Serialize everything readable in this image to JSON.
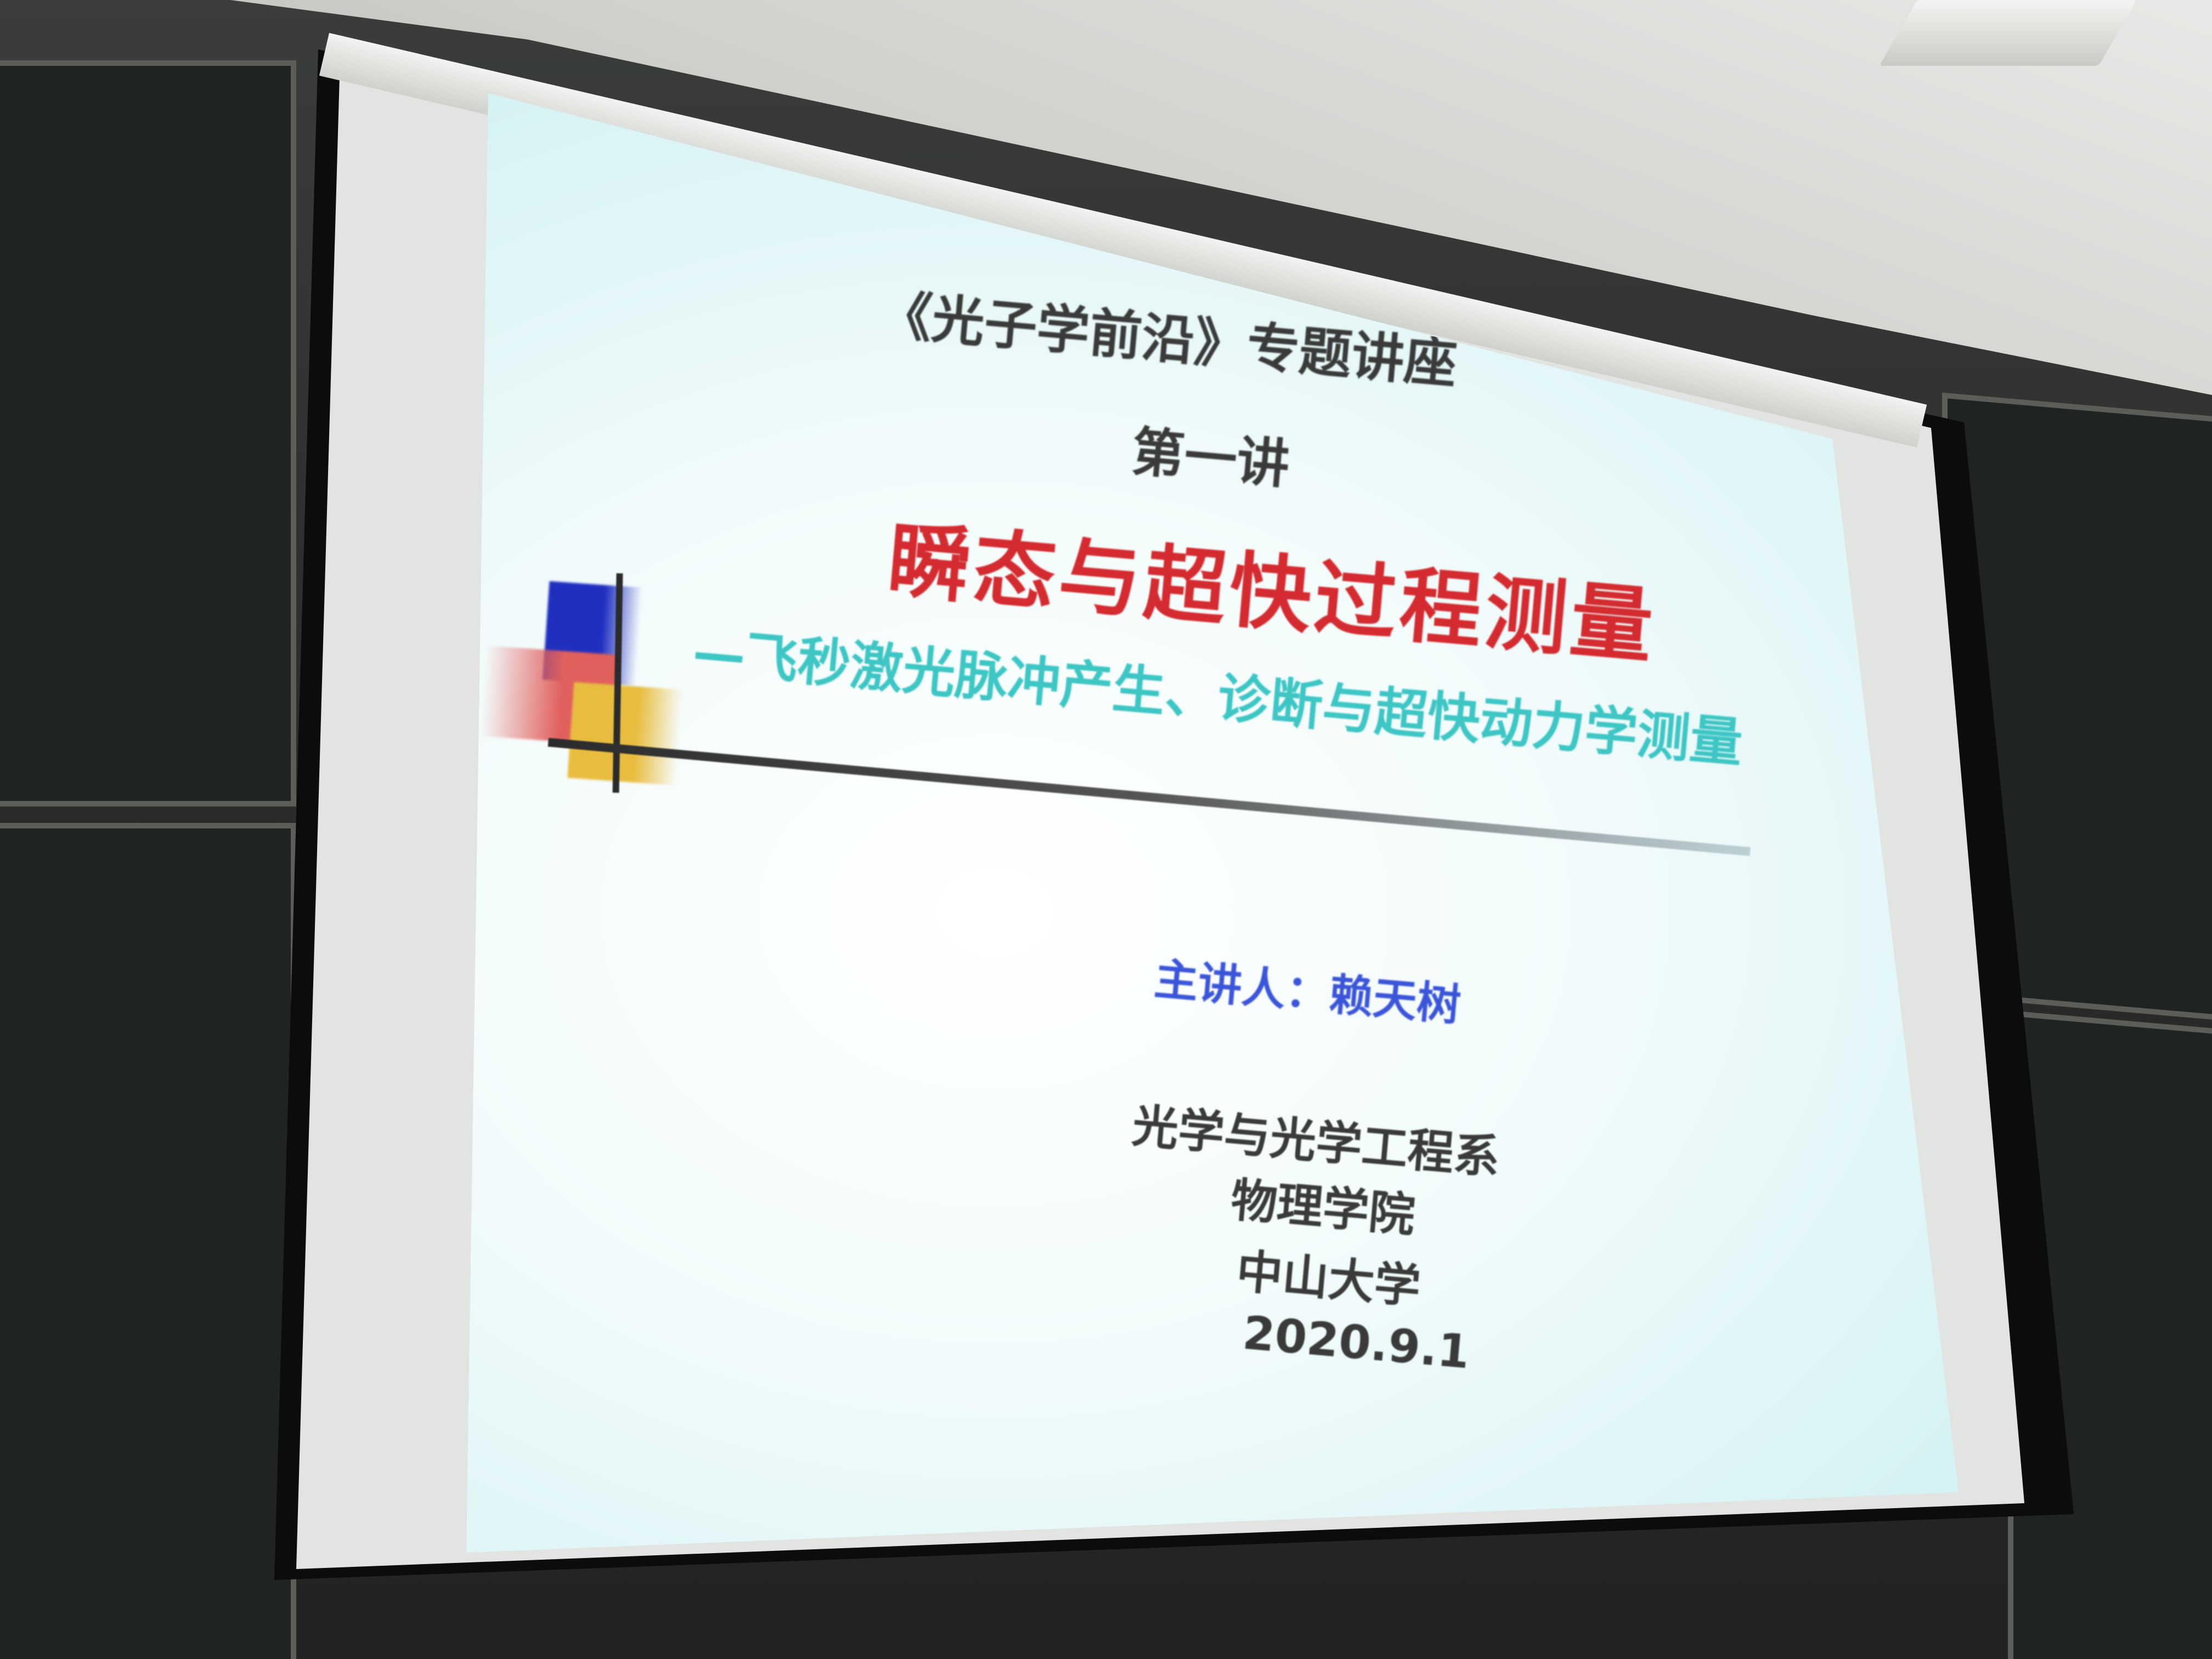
{
  "slide": {
    "series_title": "《光子学前沿》专题讲座",
    "lecture_number": "第一讲",
    "main_title": "瞬态与超快过程测量",
    "subtitle": "—飞秒激光脉冲产生、诊断与超快动力学测量",
    "speaker": "主讲人：赖天树",
    "affiliation": {
      "department": "光学与光学工程系",
      "school": "物理学院",
      "university": "中山大学"
    },
    "date": "2020.9.1"
  },
  "colors": {
    "title_red": "#d32b2f",
    "subtitle_cyan": "#3dc6c4",
    "speaker_blue": "#3b55d8",
    "text_dark": "#3a3a3a",
    "deco_blue": "#1f2fc0",
    "deco_red": "#e0605c",
    "deco_yellow": "#e8bd3f"
  }
}
